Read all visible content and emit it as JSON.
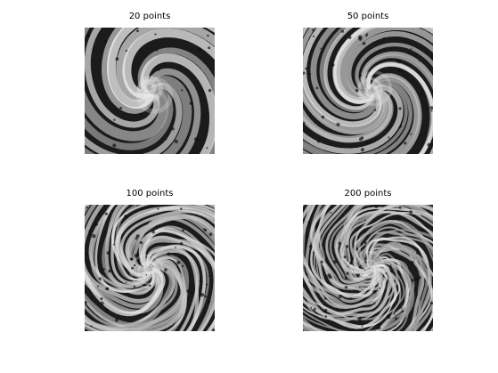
{
  "figure": {
    "panels": [
      {
        "title": "20 points"
      },
      {
        "title": "50 points"
      },
      {
        "title": "100 points"
      },
      {
        "title": "200 points"
      }
    ]
  }
}
